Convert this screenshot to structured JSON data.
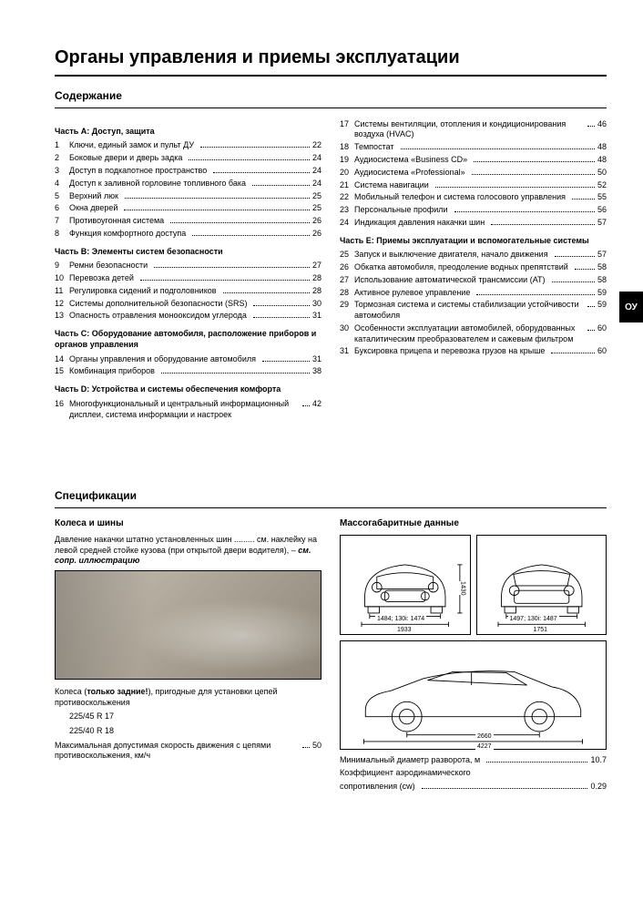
{
  "page_title": "Органы управления и приемы эксплуатации",
  "side_tab": "ОУ",
  "toc_heading": "Содержание",
  "spec_heading": "Спецификации",
  "left_sections": [
    {
      "label": "Часть А: Доступ, защита",
      "items": [
        {
          "n": "1",
          "t": "Ключи, единый замок и пульт ДУ",
          "p": "22"
        },
        {
          "n": "2",
          "t": "Боковые двери и дверь задка",
          "p": "24"
        },
        {
          "n": "3",
          "t": "Доступ в подкапотное пространство",
          "p": "24"
        },
        {
          "n": "4",
          "t": "Доступ к заливной горловине топливного бака",
          "p": "24"
        },
        {
          "n": "5",
          "t": "Верхний люк",
          "p": "25"
        },
        {
          "n": "6",
          "t": "Окна дверей",
          "p": "25"
        },
        {
          "n": "7",
          "t": "Противоугонная система",
          "p": "26"
        },
        {
          "n": "8",
          "t": "Функция комфортного доступа",
          "p": "26"
        }
      ]
    },
    {
      "label": "Часть В: Элементы систем безопасности",
      "items": [
        {
          "n": "9",
          "t": "Ремни безопасности",
          "p": "27"
        },
        {
          "n": "10",
          "t": "Перевозка детей",
          "p": "28"
        },
        {
          "n": "11",
          "t": "Регулировка сидений и подголовников",
          "p": "28"
        },
        {
          "n": "12",
          "t": "Системы дополнительной безопасности (SRS)",
          "p": "30"
        },
        {
          "n": "13",
          "t": "Опасность отравления монооксидом углерода",
          "p": "31"
        }
      ]
    },
    {
      "label": "Часть С: Оборудование автомобиля, расположение приборов и органов управления",
      "items": [
        {
          "n": "14",
          "t": "Органы управления и оборудование автомобиля",
          "p": "31"
        },
        {
          "n": "15",
          "t": "Комбинация приборов",
          "p": "38"
        }
      ]
    },
    {
      "label": "Часть D: Устройства и системы обеспечения комфорта",
      "items": [
        {
          "n": "16",
          "t": "Многофункциональный и центральный информационный дисплеи, система информации и настроек",
          "p": "42"
        }
      ]
    }
  ],
  "right_first_items": [
    {
      "n": "17",
      "t": "Системы вентиляции, отопления и кондиционирования воздуха (HVAC)",
      "p": "46"
    },
    {
      "n": "18",
      "t": "Темпостат",
      "p": "48"
    },
    {
      "n": "19",
      "t": "Аудиосистема «Business CD»",
      "p": "48"
    },
    {
      "n": "20",
      "t": "Аудиосистема «Professional»",
      "p": "50"
    },
    {
      "n": "21",
      "t": "Система навигации",
      "p": "52"
    },
    {
      "n": "22",
      "t": "Мобильный телефон и система голосового управления",
      "p": "55"
    },
    {
      "n": "23",
      "t": "Персональные профили",
      "p": "56"
    },
    {
      "n": "24",
      "t": "Индикация давления накачки шин",
      "p": "57"
    }
  ],
  "right_section_label": "Часть Е: Приемы эксплуатации и вспомогательные системы",
  "right_section_items": [
    {
      "n": "25",
      "t": "Запуск и выключение двигателя, начало движения",
      "p": "57"
    },
    {
      "n": "26",
      "t": "Обкатка автомобиля, преодоление водных препятствий",
      "p": "58"
    },
    {
      "n": "27",
      "t": "Использование автоматической трансмиссии (АТ)",
      "p": "58"
    },
    {
      "n": "28",
      "t": "Активное рулевое управление",
      "p": "59"
    },
    {
      "n": "29",
      "t": "Тормозная система и системы стабилизации устойчивости автомобиля",
      "p": "59"
    },
    {
      "n": "30",
      "t": "Особенности эксплуатации автомобилей, оборудованных каталитическим преобразователем и сажевым фильтром",
      "p": "60"
    },
    {
      "n": "31",
      "t": "Буксировка прицепа и перевозка грузов на крыше",
      "p": "60"
    }
  ],
  "wheels": {
    "heading": "Колеса и шины",
    "text1": "Давление накачки штатно установленных шин ......... см. наклейку на левой средней стойке кузова (при открытой двери водителя), – ",
    "text1_em": "см. сопр. иллюстрацию",
    "text2_a": "Колеса (",
    "text2_b": "только задние!",
    "text2_c": "), пригодные для установки цепей противоскольжения",
    "tyres": [
      "225/45 R 17",
      "225/40 R 18"
    ],
    "text3": "Максимальная допустимая скорость движения с цепями противоскольжения, км/ч",
    "text3_p": "50"
  },
  "dims": {
    "heading": "Массогабаритные данные",
    "front_track": "1484; 130i: 1474",
    "front_width": "1933",
    "rear_track": "1497; 130i: 1487",
    "rear_width": "1751",
    "height": "1430",
    "wheelbase": "2660",
    "length": "4227",
    "turn_label": "Минимальный диаметр разворота, м",
    "turn_val": "10.7",
    "cw_label_a": "Коэффициент аэродинамического",
    "cw_label_b": "сопротивления (cw)",
    "cw_val": "0.29"
  }
}
